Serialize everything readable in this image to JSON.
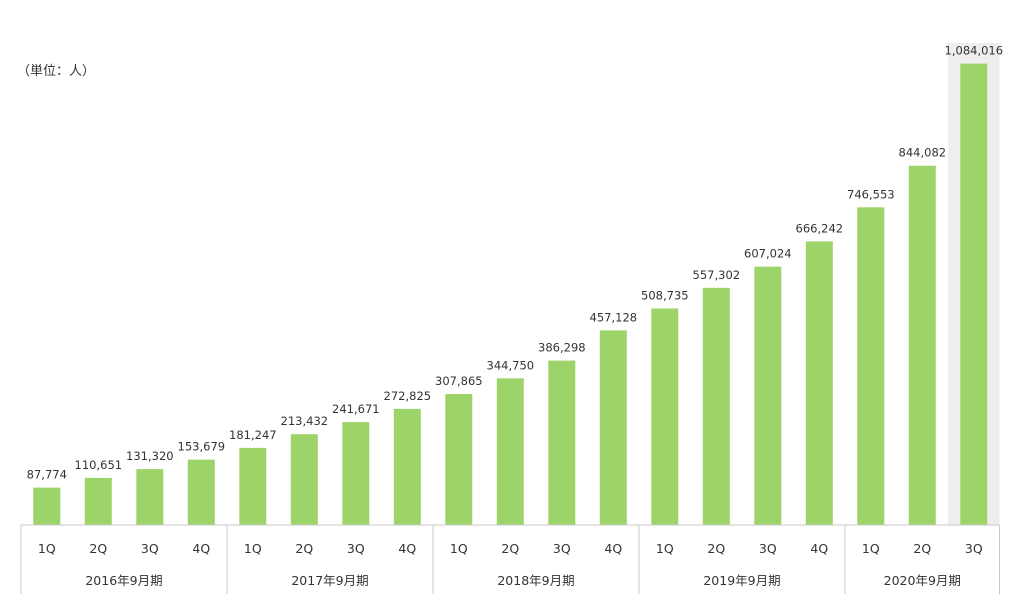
{
  "chart_data": {
    "type": "bar",
    "unit_label": "（単位：人）",
    "categories": [
      "1Q",
      "2Q",
      "3Q",
      "4Q",
      "1Q",
      "2Q",
      "3Q",
      "4Q",
      "1Q",
      "2Q",
      "3Q",
      "4Q",
      "1Q",
      "2Q",
      "3Q",
      "4Q",
      "1Q",
      "2Q",
      "3Q"
    ],
    "values": [
      87774,
      110651,
      131320,
      153679,
      181247,
      213432,
      241671,
      272825,
      307865,
      344750,
      386298,
      457128,
      508735,
      557302,
      607024,
      666242,
      746553,
      844082,
      1084016
    ],
    "value_labels": [
      "87,774",
      "110,651",
      "131,320",
      "153,679",
      "181,247",
      "213,432",
      "241,671",
      "272,825",
      "307,865",
      "344,750",
      "386,298",
      "457,128",
      "508,735",
      "557,302",
      "607,024",
      "666,242",
      "746,553",
      "844,082",
      "1,084,016"
    ],
    "groups": [
      {
        "label": "2016年9月期",
        "count": 4
      },
      {
        "label": "2017年9月期",
        "count": 4
      },
      {
        "label": "2018年9月期",
        "count": 4
      },
      {
        "label": "2019年9月期",
        "count": 4
      },
      {
        "label": "2020年9月期",
        "count": 3
      }
    ],
    "highlight_index": 18,
    "ylim": [
      0,
      1210000
    ],
    "grid": false,
    "legend": "none"
  },
  "colors": {
    "bar": "#9dd46a",
    "highlight_background": "#eeeeee",
    "axis_line": "#c8c8c8",
    "text": "#333333"
  }
}
